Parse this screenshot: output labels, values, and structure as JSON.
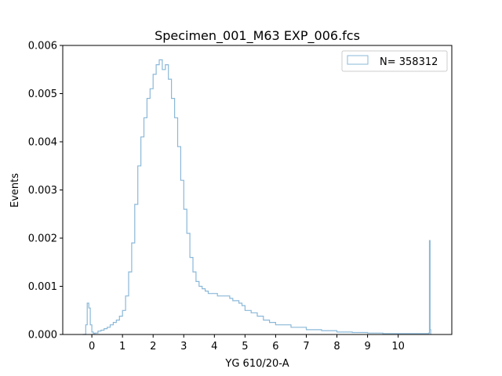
{
  "chart_data": {
    "type": "histogram",
    "title": "Specimen_001_M63 EXP_006.fcs",
    "xlabel": "YG 610/20-A",
    "ylabel": "Events",
    "xlim": [
      -0.95,
      11.75
    ],
    "ylim": [
      0,
      0.006
    ],
    "xticks": [
      0,
      1,
      2,
      3,
      4,
      5,
      6,
      7,
      8,
      9,
      10
    ],
    "yticks": [
      "0.000",
      "0.001",
      "0.002",
      "0.003",
      "0.004",
      "0.005",
      "0.006"
    ],
    "grid": false,
    "legend_position": "top-right",
    "series": [
      {
        "name": "N= 358312",
        "color": "#8ab8d8",
        "step": true,
        "x": [
          -0.3,
          -0.2,
          -0.15,
          -0.1,
          -0.05,
          0,
          0.05,
          0.1,
          0.2,
          0.3,
          0.4,
          0.5,
          0.6,
          0.7,
          0.8,
          0.9,
          1.0,
          1.1,
          1.2,
          1.3,
          1.4,
          1.5,
          1.6,
          1.7,
          1.8,
          1.9,
          2.0,
          2.1,
          2.2,
          2.3,
          2.4,
          2.5,
          2.6,
          2.7,
          2.8,
          2.9,
          3.0,
          3.1,
          3.2,
          3.3,
          3.4,
          3.5,
          3.6,
          3.7,
          3.8,
          3.9,
          4.0,
          4.1,
          4.2,
          4.3,
          4.4,
          4.5,
          4.6,
          4.7,
          4.8,
          4.9,
          5.0,
          5.2,
          5.4,
          5.6,
          5.8,
          6.0,
          6.5,
          7.0,
          7.5,
          8.0,
          8.5,
          9.0,
          9.5,
          10.0,
          10.5,
          11.0,
          11.02,
          11.04,
          11.06
        ],
        "y": [
          0,
          0.0002,
          0.00065,
          0.00055,
          0.0002,
          5e-05,
          2e-05,
          3e-05,
          7e-05,
          9e-05,
          0.00012,
          0.00015,
          0.0002,
          0.00025,
          0.0003,
          0.00038,
          0.0005,
          0.0008,
          0.0013,
          0.0019,
          0.0027,
          0.0035,
          0.0041,
          0.0045,
          0.0049,
          0.0051,
          0.0054,
          0.0056,
          0.0057,
          0.0055,
          0.0056,
          0.0053,
          0.0049,
          0.0045,
          0.0039,
          0.0032,
          0.0026,
          0.0021,
          0.0016,
          0.0013,
          0.0011,
          0.001,
          0.00095,
          0.0009,
          0.00085,
          0.00085,
          0.00085,
          0.0008,
          0.0008,
          0.0008,
          0.0008,
          0.00075,
          0.0007,
          0.0007,
          0.00065,
          0.0006,
          0.0005,
          0.00045,
          0.00038,
          0.0003,
          0.00025,
          0.0002,
          0.00015,
          0.0001,
          8e-05,
          5e-05,
          4e-05,
          3e-05,
          2e-05,
          2e-05,
          2e-05,
          3e-05,
          0.00195,
          0.0001,
          0
        ]
      }
    ]
  }
}
